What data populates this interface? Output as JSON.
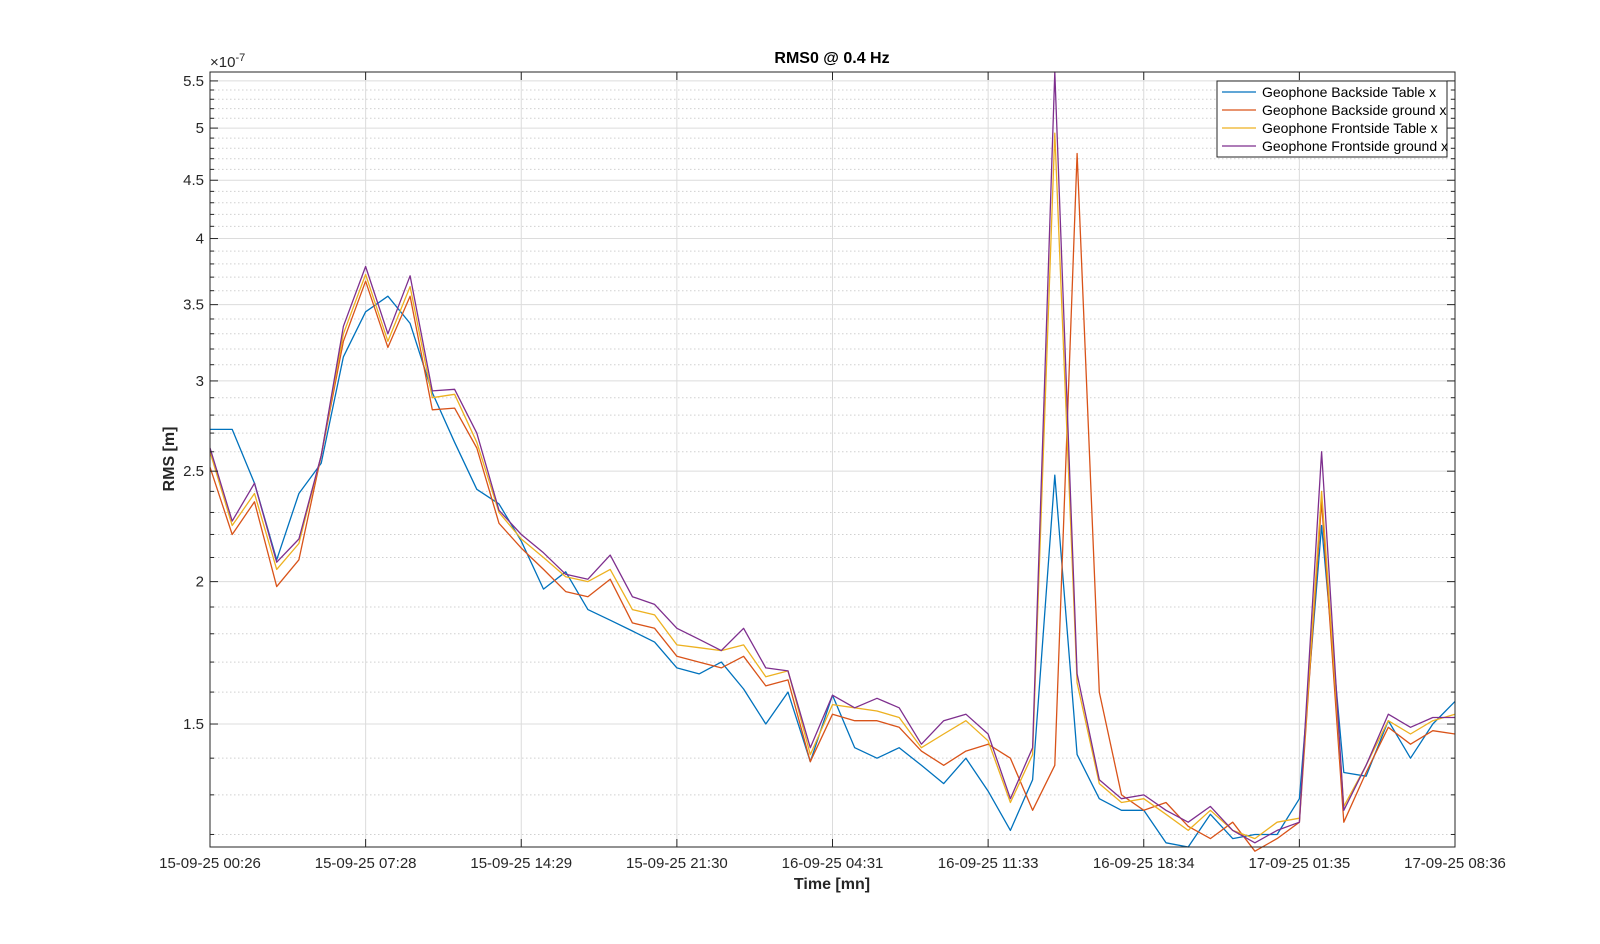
{
  "chart_data": {
    "type": "line",
    "title": "RMS0 @ 0.4 Hz",
    "xlabel": "Time [mn]",
    "ylabel": "RMS [m]",
    "y_exponent_label": "×10",
    "y_exponent_power": "-7",
    "yscale": "log",
    "ylim": [
      1.17,
      5.6
    ],
    "y_ticks": [
      1.5,
      2,
      2.5,
      3,
      3.5,
      4,
      4.5,
      5,
      5.5
    ],
    "y_tick_labels": [
      "1.5",
      "2",
      "2.5",
      "3",
      "3.5",
      "4",
      "4.5",
      "5",
      "5.5"
    ],
    "y_minor_ticks": [
      1.2,
      1.3,
      1.4,
      1.6,
      1.7,
      1.8,
      1.9,
      2.1,
      2.2,
      2.3,
      2.4,
      2.6,
      2.7,
      2.8,
      2.9,
      3.1,
      3.2,
      3.3,
      3.4,
      3.6,
      3.7,
      3.8,
      3.9,
      4.1,
      4.2,
      4.3,
      4.4,
      4.6,
      4.7,
      4.8,
      4.9,
      5.1,
      5.2,
      5.3,
      5.4
    ],
    "x_tick_labels": [
      "15-09-25 00:26",
      "15-09-25 07:28",
      "15-09-25 14:29",
      "15-09-25 21:30",
      "16-09-25 04:31",
      "16-09-25 11:33",
      "16-09-25 18:34",
      "17-09-25 01:35",
      "17-09-25 08:36"
    ],
    "x_tick_index": [
      0,
      7,
      14,
      21,
      28,
      35,
      42,
      49,
      56
    ],
    "x_count": 57,
    "grid": true,
    "legend_position": "top-right",
    "series": [
      {
        "name": "Geophone Backside Table x",
        "color": "#0072BD",
        "values": [
          2.72,
          2.72,
          2.44,
          2.09,
          2.39,
          2.54,
          3.15,
          3.45,
          3.56,
          3.37,
          2.93,
          2.65,
          2.41,
          2.34,
          2.17,
          1.97,
          2.04,
          1.89,
          1.85,
          1.81,
          1.77,
          1.68,
          1.66,
          1.7,
          1.61,
          1.5,
          1.6,
          1.39,
          1.59,
          1.43,
          1.4,
          1.43,
          1.38,
          1.33,
          1.4,
          1.31,
          1.21,
          1.34,
          2.48,
          1.41,
          1.29,
          1.26,
          1.26,
          1.18,
          1.17,
          1.25,
          1.19,
          1.2,
          1.2,
          1.29,
          2.24,
          1.36,
          1.35,
          1.51,
          1.4,
          1.5,
          1.57
        ]
      },
      {
        "name": "Geophone Backside ground x",
        "color": "#D95319",
        "values": [
          2.52,
          2.2,
          2.35,
          1.98,
          2.09,
          2.58,
          3.25,
          3.67,
          3.21,
          3.56,
          2.83,
          2.84,
          2.62,
          2.25,
          2.14,
          2.05,
          1.96,
          1.94,
          2.01,
          1.84,
          1.82,
          1.72,
          1.7,
          1.68,
          1.72,
          1.62,
          1.64,
          1.39,
          1.53,
          1.51,
          1.51,
          1.49,
          1.42,
          1.38,
          1.42,
          1.44,
          1.4,
          1.26,
          1.38,
          4.75,
          1.6,
          1.3,
          1.26,
          1.28,
          1.22,
          1.19,
          1.23,
          1.16,
          1.19,
          1.23,
          2.35,
          1.23,
          1.36,
          1.49,
          1.44,
          1.48,
          1.47
        ]
      },
      {
        "name": "Geophone Frontside Table x",
        "color": "#EDB120",
        "values": [
          2.6,
          2.24,
          2.39,
          2.05,
          2.16,
          2.58,
          3.3,
          3.72,
          3.25,
          3.63,
          2.9,
          2.92,
          2.65,
          2.3,
          2.18,
          2.1,
          2.02,
          2.0,
          2.05,
          1.89,
          1.87,
          1.76,
          1.75,
          1.74,
          1.76,
          1.65,
          1.67,
          1.41,
          1.56,
          1.55,
          1.54,
          1.52,
          1.43,
          1.47,
          1.51,
          1.45,
          1.28,
          1.41,
          4.95,
          1.63,
          1.33,
          1.28,
          1.29,
          1.25,
          1.21,
          1.26,
          1.21,
          1.19,
          1.23,
          1.24,
          2.4,
          1.27,
          1.38,
          1.51,
          1.47,
          1.51,
          1.53
        ]
      },
      {
        "name": "Geophone Frontside ground x",
        "color": "#7E2F8E",
        "values": [
          2.62,
          2.26,
          2.44,
          2.08,
          2.18,
          2.58,
          3.35,
          3.78,
          3.3,
          3.71,
          2.94,
          2.95,
          2.7,
          2.31,
          2.2,
          2.12,
          2.03,
          2.01,
          2.11,
          1.94,
          1.91,
          1.82,
          1.78,
          1.74,
          1.82,
          1.68,
          1.67,
          1.43,
          1.59,
          1.55,
          1.58,
          1.55,
          1.44,
          1.51,
          1.53,
          1.47,
          1.29,
          1.43,
          5.6,
          1.66,
          1.34,
          1.29,
          1.3,
          1.26,
          1.23,
          1.27,
          1.21,
          1.18,
          1.21,
          1.23,
          2.6,
          1.26,
          1.38,
          1.53,
          1.49,
          1.52,
          1.52
        ]
      }
    ]
  }
}
